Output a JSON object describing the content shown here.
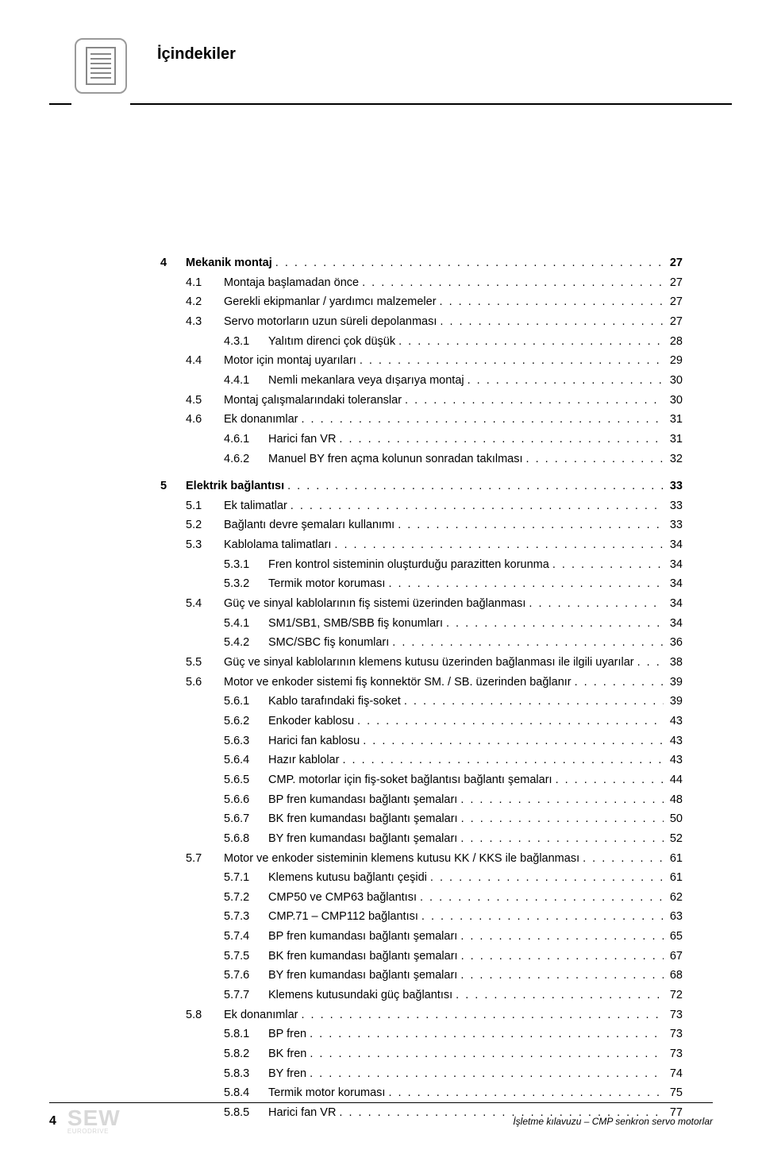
{
  "header": {
    "title": "İçindekiler"
  },
  "toc": [
    {
      "level": 1,
      "num": "4",
      "title": "Mekanik montaj",
      "page": "27",
      "bold": true,
      "gap": true
    },
    {
      "level": 2,
      "num": "4.1",
      "title": "Montaja başlamadan önce",
      "page": "27"
    },
    {
      "level": 2,
      "num": "4.2",
      "title": "Gerekli ekipmanlar / yardımcı malzemeler",
      "page": "27"
    },
    {
      "level": 2,
      "num": "4.3",
      "title": "Servo motorların uzun süreli depolanması",
      "page": "27"
    },
    {
      "level": 3,
      "num": "4.3.1",
      "title": "Yalıtım direnci çok düşük",
      "page": "28"
    },
    {
      "level": 2,
      "num": "4.4",
      "title": "Motor için montaj uyarıları",
      "page": "29"
    },
    {
      "level": 3,
      "num": "4.4.1",
      "title": "Nemli mekanlara veya dışarıya montaj",
      "page": "30"
    },
    {
      "level": 2,
      "num": "4.5",
      "title": "Montaj çalışmalarındaki toleranslar",
      "page": "30"
    },
    {
      "level": 2,
      "num": "4.6",
      "title": "Ek donanımlar",
      "page": "31"
    },
    {
      "level": 3,
      "num": "4.6.1",
      "title": "Harici fan VR",
      "page": "31"
    },
    {
      "level": 3,
      "num": "4.6.2",
      "title": "Manuel BY fren açma kolunun sonradan takılması",
      "page": "32"
    },
    {
      "level": 1,
      "num": "5",
      "title": "Elektrik bağlantısı",
      "page": "33",
      "bold": true,
      "gap": true
    },
    {
      "level": 2,
      "num": "5.1",
      "title": "Ek talimatlar",
      "page": "33"
    },
    {
      "level": 2,
      "num": "5.2",
      "title": "Bağlantı devre şemaları kullanımı",
      "page": "33"
    },
    {
      "level": 2,
      "num": "5.3",
      "title": "Kablolama talimatları",
      "page": "34"
    },
    {
      "level": 3,
      "num": "5.3.1",
      "title": "Fren kontrol sisteminin oluşturduğu parazitten korunma",
      "page": "34"
    },
    {
      "level": 3,
      "num": "5.3.2",
      "title": "Termik motor koruması",
      "page": "34"
    },
    {
      "level": 2,
      "num": "5.4",
      "title": "Güç ve sinyal kablolarının fiş sistemi üzerinden bağlanması",
      "page": "34"
    },
    {
      "level": 3,
      "num": "5.4.1",
      "title": "SM1/SB1, SMB/SBB fiş konumları",
      "page": "34"
    },
    {
      "level": 3,
      "num": "5.4.2",
      "title": "SMC/SBC fiş konumları",
      "page": "36"
    },
    {
      "level": 2,
      "num": "5.5",
      "title": "Güç ve sinyal kablolarının klemens kutusu üzerinden bağlanması ile ilgili uyarılar",
      "page": "38",
      "wrap": true
    },
    {
      "level": 2,
      "num": "5.6",
      "title": "Motor ve enkoder sistemi fiş konnektör SM. / SB. üzerinden bağlanır",
      "page": "39"
    },
    {
      "level": 3,
      "num": "5.6.1",
      "title": "Kablo tarafındaki fiş-soket",
      "page": "39"
    },
    {
      "level": 3,
      "num": "5.6.2",
      "title": "Enkoder kablosu",
      "page": "43"
    },
    {
      "level": 3,
      "num": "5.6.3",
      "title": "Harici fan kablosu",
      "page": "43"
    },
    {
      "level": 3,
      "num": "5.6.4",
      "title": "Hazır kablolar",
      "page": "43"
    },
    {
      "level": 3,
      "num": "5.6.5",
      "title": "CMP. motorlar için fiş-soket bağlantısı bağlantı şemaları",
      "page": "44"
    },
    {
      "level": 3,
      "num": "5.6.6",
      "title": "BP fren kumandası bağlantı şemaları",
      "page": "48"
    },
    {
      "level": 3,
      "num": "5.6.7",
      "title": "BK fren kumandası bağlantı şemaları",
      "page": "50"
    },
    {
      "level": 3,
      "num": "5.6.8",
      "title": "BY fren kumandası bağlantı şemaları",
      "page": "52"
    },
    {
      "level": 2,
      "num": "5.7",
      "title": "Motor ve enkoder sisteminin klemens kutusu KK / KKS ile bağlanması",
      "page": "61"
    },
    {
      "level": 3,
      "num": "5.7.1",
      "title": "Klemens kutusu bağlantı çeşidi",
      "page": "61"
    },
    {
      "level": 3,
      "num": "5.7.2",
      "title": "CMP50 ve CMP63 bağlantısı",
      "page": "62"
    },
    {
      "level": 3,
      "num": "5.7.3",
      "title": "CMP.71 – CMP112 bağlantısı",
      "page": "63"
    },
    {
      "level": 3,
      "num": "5.7.4",
      "title": "BP fren kumandası bağlantı şemaları",
      "page": "65"
    },
    {
      "level": 3,
      "num": "5.7.5",
      "title": "BK fren kumandası bağlantı şemaları",
      "page": "67"
    },
    {
      "level": 3,
      "num": "5.7.6",
      "title": "BY fren kumandası bağlantı şemaları",
      "page": "68"
    },
    {
      "level": 3,
      "num": "5.7.7",
      "title": "Klemens kutusundaki güç bağlantısı",
      "page": "72"
    },
    {
      "level": 2,
      "num": "5.8",
      "title": "Ek donanımlar",
      "page": "73"
    },
    {
      "level": 3,
      "num": "5.8.1",
      "title": "BP fren",
      "page": "73"
    },
    {
      "level": 3,
      "num": "5.8.2",
      "title": "BK fren",
      "page": "73"
    },
    {
      "level": 3,
      "num": "5.8.3",
      "title": "BY fren",
      "page": "74"
    },
    {
      "level": 3,
      "num": "5.8.4",
      "title": "Termik motor koruması",
      "page": "75"
    },
    {
      "level": 3,
      "num": "5.8.5",
      "title": "Harici fan VR",
      "page": "77"
    }
  ],
  "footer": {
    "page_number": "4",
    "logo_main": "SEW",
    "logo_sub": "EURODRIVE",
    "right_text": "İşletme kılavuzu – CMP senkron servo motorlar"
  },
  "styles": {
    "background_color": "#ffffff",
    "text_color": "#000000",
    "icon_border_color": "#9a9a9a",
    "logo_color": "#d8d8d8",
    "body_fontsize": 14.5,
    "title_fontsize": 20
  }
}
